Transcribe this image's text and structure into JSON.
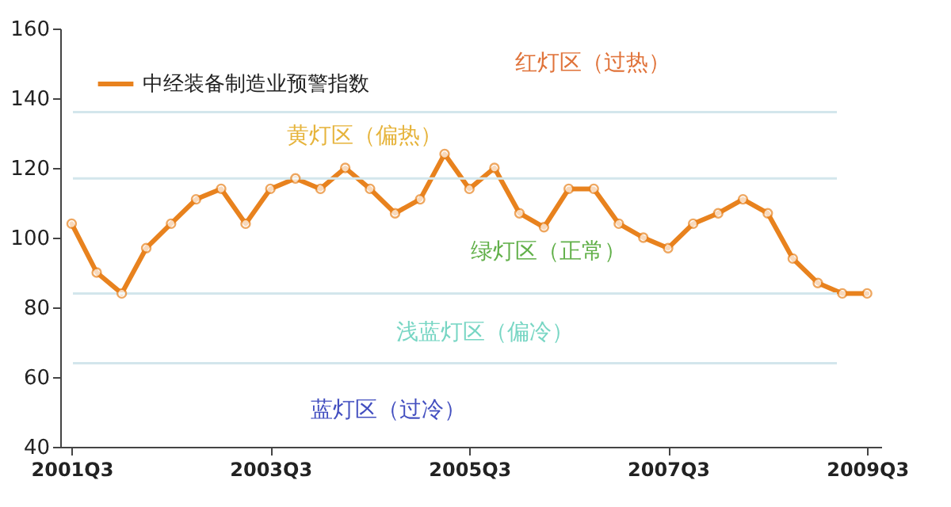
{
  "chart_data": {
    "type": "line",
    "x": [
      "2001-07",
      "2001-10",
      "2002-01",
      "2002-04",
      "2002-07",
      "2002-10",
      "2003-01",
      "2003-04",
      "2003-07",
      "2003-10",
      "2004-01",
      "2004-04",
      "2004-07",
      "2004-10",
      "2005-01",
      "2005-04",
      "2005-07",
      "2005-10",
      "2006-01",
      "2006-04",
      "2006-07",
      "2006-10",
      "2007-01",
      "2007-04",
      "2007-07",
      "2007-10",
      "2008-01",
      "2008-04",
      "2008-07",
      "2008-10",
      "2009-01",
      "2009-04",
      "2009-07"
    ],
    "series": [
      {
        "name": "中经装备制造业预警指数",
        "color": "#e8821e",
        "values": [
          104,
          90,
          84,
          97,
          104,
          111,
          114,
          104,
          114,
          117,
          114,
          120,
          114,
          107,
          111,
          124,
          114,
          120,
          107,
          103,
          114,
          114,
          104,
          100,
          97,
          104,
          107,
          111,
          107,
          94,
          87,
          84,
          84
        ]
      }
    ],
    "xlim": [
      "2001-05-20",
      "2009-08-22"
    ],
    "xticks": [
      {
        "value": "2001-07",
        "label": "2001Q3"
      },
      {
        "value": "2003-07",
        "label": "2003Q3"
      },
      {
        "value": "2005-07",
        "label": "2005Q3"
      },
      {
        "value": "2007-07",
        "label": "2007Q3"
      },
      {
        "value": "2009-07",
        "label": "2009Q3"
      }
    ],
    "ylim": [
      40,
      160
    ],
    "yticks": [
      40,
      60,
      80,
      100,
      120,
      140,
      160
    ],
    "marker": "circle",
    "line_style": "solid",
    "legend": "top left",
    "grid": false,
    "ref_lines": [
      {
        "axis": "y",
        "value": 136,
        "color": "#d3e6ec"
      },
      {
        "axis": "y",
        "value": 117,
        "color": "#d3e6ec"
      },
      {
        "axis": "y",
        "value": 84,
        "color": "#d3e6ec"
      },
      {
        "axis": "y",
        "value": 64,
        "color": "#d3e6ec"
      }
    ],
    "annotations": [
      "红灯区（过热）",
      "黄灯区（偏热）",
      "绿灯区（正常）",
      "浅蓝灯区（偏冷）",
      "蓝灯区（过冷）"
    ]
  }
}
